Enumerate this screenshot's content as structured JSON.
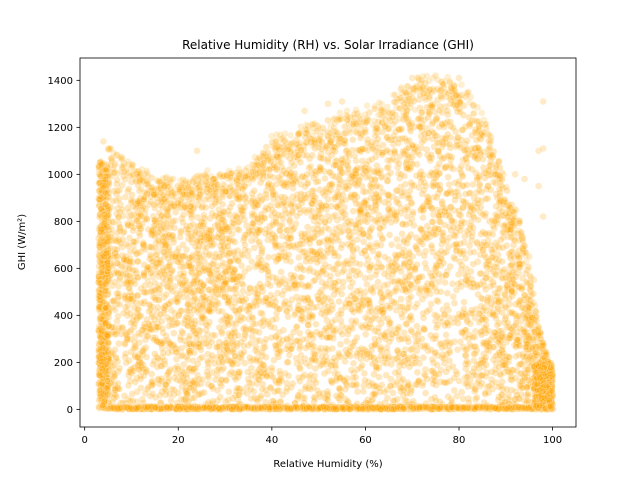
{
  "chart_data": {
    "type": "scatter",
    "title": "Relative Humidity (RH) vs. Solar Irradiance (GHI)",
    "xlabel": "Relative Humidity (%)",
    "ylabel": "GHI (W/m²)",
    "xlim": [
      -1,
      105
    ],
    "ylim": [
      -75,
      1495
    ],
    "xticks": [
      0,
      20,
      40,
      60,
      80,
      100
    ],
    "yticks": [
      0,
      200,
      400,
      600,
      800,
      1000,
      1200,
      1400
    ],
    "grid": false,
    "legend": "none",
    "marker_color": "#FFA500",
    "marker_alpha": 0.25,
    "upper_envelope": [
      [
        3,
        400
      ],
      [
        5,
        1120
      ],
      [
        10,
        1030
      ],
      [
        15,
        980
      ],
      [
        20,
        960
      ],
      [
        25,
        1000
      ],
      [
        30,
        1000
      ],
      [
        35,
        1020
      ],
      [
        40,
        1150
      ],
      [
        45,
        1180
      ],
      [
        50,
        1220
      ],
      [
        55,
        1250
      ],
      [
        60,
        1270
      ],
      [
        65,
        1300
      ],
      [
        70,
        1380
      ],
      [
        75,
        1400
      ],
      [
        80,
        1380
      ],
      [
        85,
        1250
      ],
      [
        88,
        1100
      ],
      [
        90,
        950
      ],
      [
        93,
        800
      ],
      [
        95,
        600
      ],
      [
        97,
        350
      ],
      [
        100,
        150
      ]
    ],
    "outliers": [
      [
        70,
        1410
      ],
      [
        72,
        1400
      ],
      [
        75,
        1420
      ],
      [
        78,
        1390
      ],
      [
        80,
        1410
      ],
      [
        82,
        1350
      ],
      [
        92,
        1000
      ],
      [
        94,
        980
      ],
      [
        97,
        1100
      ],
      [
        98,
        1310
      ],
      [
        97,
        950
      ],
      [
        98,
        820
      ],
      [
        96,
        550
      ],
      [
        95,
        650
      ],
      [
        47,
        1270
      ],
      [
        52,
        1300
      ],
      [
        55,
        1310
      ],
      [
        4,
        1140
      ],
      [
        24,
        1100
      ],
      [
        98,
        1110
      ]
    ]
  }
}
